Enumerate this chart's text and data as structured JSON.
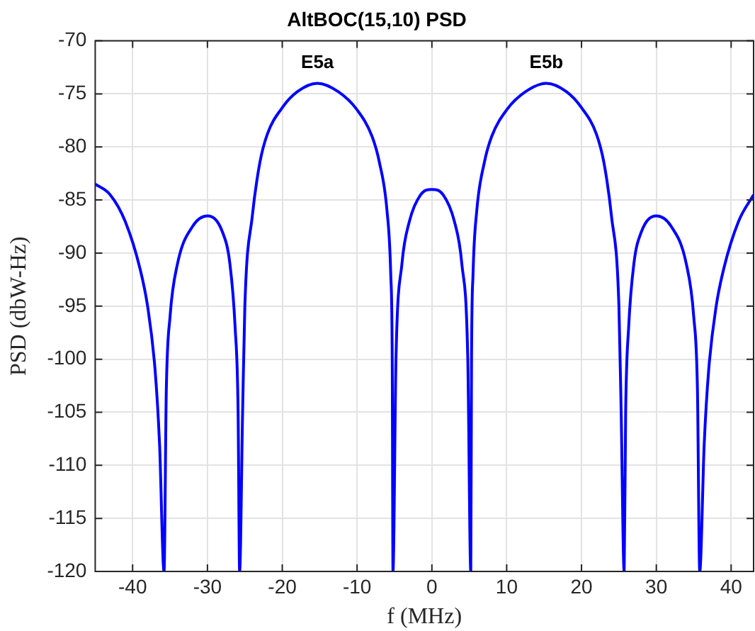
{
  "chart_data": {
    "type": "line",
    "title": "AltBOC(15,10) PSD",
    "xlabel": "f (MHz)",
    "ylabel": "PSD (dbW-Hz)",
    "annotations": [
      {
        "text": "E5a",
        "x": -15.3,
        "y": -74
      },
      {
        "text": "E5b",
        "x": 15.3,
        "y": -74
      }
    ],
    "series": [
      {
        "color": "#0000ff",
        "x": [
          -45,
          -43,
          -41,
          -39,
          -38,
          -37,
          -36.4,
          -35.8,
          -35.5,
          -35,
          -34,
          -32,
          -30,
          -28,
          -27,
          -26.3,
          -25.9,
          -25.7,
          -25.3,
          -25,
          -24,
          -23,
          -22,
          -20,
          -18,
          -15.3,
          -12.5,
          -10,
          -8,
          -7,
          -6,
          -5.5,
          -5.3,
          -5.2,
          -4.8,
          -4,
          -3,
          -1.5,
          0,
          1.5,
          3,
          4,
          4.8,
          5.2,
          5.3,
          5.5,
          6,
          7,
          8,
          10,
          12.5,
          15.3,
          18,
          20,
          22,
          23,
          24,
          25,
          25.3,
          25.7,
          25.9,
          26.3,
          27,
          28,
          30,
          32,
          34,
          35,
          35.5,
          35.8,
          36.4,
          37,
          38,
          39,
          41,
          43
        ],
        "values": [
          -83.5,
          -84.5,
          -87,
          -91.5,
          -95,
          -101,
          -108,
          -120,
          -103,
          -96,
          -91,
          -87.5,
          -86.5,
          -88,
          -91,
          -97,
          -105,
          -120,
          -105,
          -95,
          -86.5,
          -81.5,
          -78.8,
          -76.3,
          -74.8,
          -74,
          -74.8,
          -76.5,
          -79,
          -81.5,
          -86,
          -92,
          -100,
          -120,
          -100,
          -91,
          -87,
          -84.5,
          -84,
          -84.5,
          -87,
          -91,
          -100,
          -120,
          -100,
          -92,
          -86,
          -81.5,
          -79,
          -76.5,
          -74.8,
          -74,
          -74.8,
          -76.3,
          -78.8,
          -81.5,
          -86.5,
          -95,
          -105,
          -120,
          -105,
          -97,
          -91,
          -88,
          -86.5,
          -87.5,
          -91,
          -96,
          -103,
          -120,
          -108,
          -101,
          -95,
          -91.5,
          -87,
          -84.5
        ]
      }
    ],
    "xlim": [
      -45,
      43
    ],
    "xticks": [
      -40,
      -30,
      -20,
      -10,
      0,
      10,
      20,
      30,
      40
    ],
    "ylim": [
      -120,
      -70
    ],
    "yticks": [
      -120,
      -115,
      -110,
      -105,
      -100,
      -95,
      -90,
      -85,
      -80,
      -75,
      -70
    ],
    "grid": true,
    "legend": false,
    "marker": "none",
    "line_style": "solid"
  }
}
